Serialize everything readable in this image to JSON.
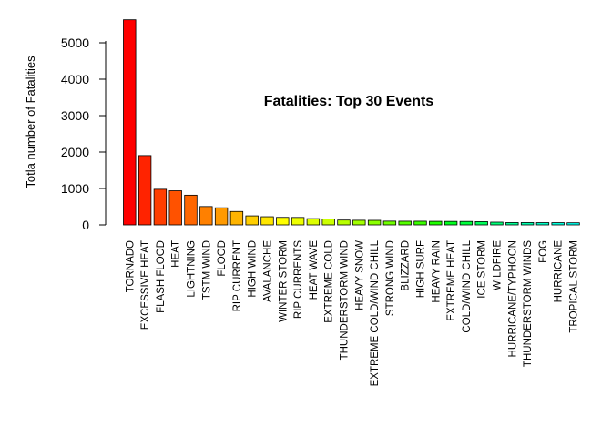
{
  "chart_data": {
    "type": "bar",
    "title": "Fatalities: Top 30 Events",
    "xlabel": "",
    "ylabel": "Totla number of Fatalities",
    "ylim": [
      0,
      5700
    ],
    "yticks": [
      0,
      1000,
      2000,
      3000,
      4000,
      5000
    ],
    "grid": false,
    "legend": "none",
    "categories": [
      "TORNADO",
      "EXCESSIVE HEAT",
      "FLASH FLOOD",
      "HEAT",
      "LIGHTNING",
      "TSTM WIND",
      "FLOOD",
      "RIP CURRENT",
      "HIGH WIND",
      "AVALANCHE",
      "WINTER STORM",
      "RIP CURRENTS",
      "HEAT WAVE",
      "EXTREME COLD",
      "THUNDERSTORM WIND",
      "HEAVY SNOW",
      "EXTREME COLD/WIND CHILL",
      "STRONG WIND",
      "BLIZZARD",
      "HIGH SURF",
      "HEAVY RAIN",
      "EXTREME HEAT",
      "COLD/WIND CHILL",
      "ICE STORM",
      "WILDFIRE",
      "HURRICANE/TYPHOON",
      "THUNDERSTORM WINDS",
      "FOG",
      "HURRICANE",
      "TROPICAL STORM"
    ],
    "values": [
      5633,
      1903,
      978,
      937,
      816,
      504,
      470,
      368,
      248,
      224,
      206,
      204,
      172,
      160,
      133,
      127,
      125,
      103,
      101,
      101,
      98,
      96,
      95,
      89,
      75,
      64,
      64,
      62,
      61,
      58
    ],
    "colors": [
      "#FF0000",
      "#FF2300",
      "#FF3E00",
      "#FF5200",
      "#FF6600",
      "#FF8000",
      "#FF9A00",
      "#FFB400",
      "#FFCE00",
      "#FFE600",
      "#FFFF00",
      "#EEFF00",
      "#DDFF00",
      "#CCFF00",
      "#B8FF00",
      "#A2FF00",
      "#8AFF00",
      "#70FF00",
      "#55FF00",
      "#3AFF00",
      "#1FFF00",
      "#00FF1E",
      "#00FF3C",
      "#00FF5A",
      "#00FF77",
      "#00FF94",
      "#00FFAE",
      "#00FFC6",
      "#00FFDB",
      "#00FFEC"
    ]
  }
}
